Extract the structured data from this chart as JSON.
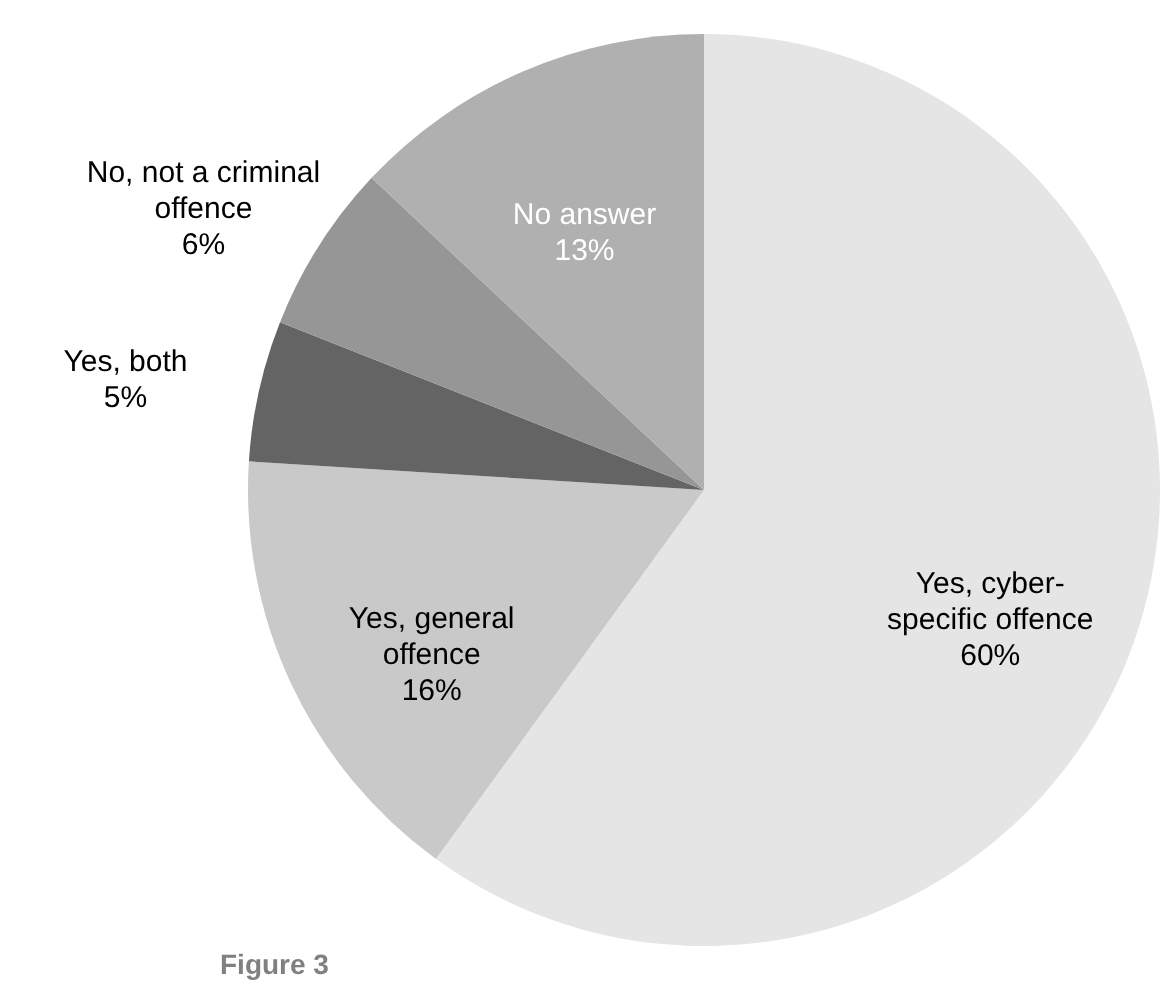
{
  "chart_data": {
    "type": "pie",
    "categories": [
      "Yes, cyber-specific offence",
      "Yes, general offence",
      "Yes, both",
      "No, not a criminal offence",
      "No answer"
    ],
    "values": [
      60,
      16,
      5,
      6,
      13
    ],
    "value_labels": [
      "60%",
      "16%",
      "5%",
      "6%",
      "13%"
    ],
    "colors": [
      "#e5e5e5",
      "#c9c9c9",
      "#646464",
      "#969696",
      "#b0b0b0"
    ],
    "annotations": [
      "Figure 3"
    ]
  }
}
